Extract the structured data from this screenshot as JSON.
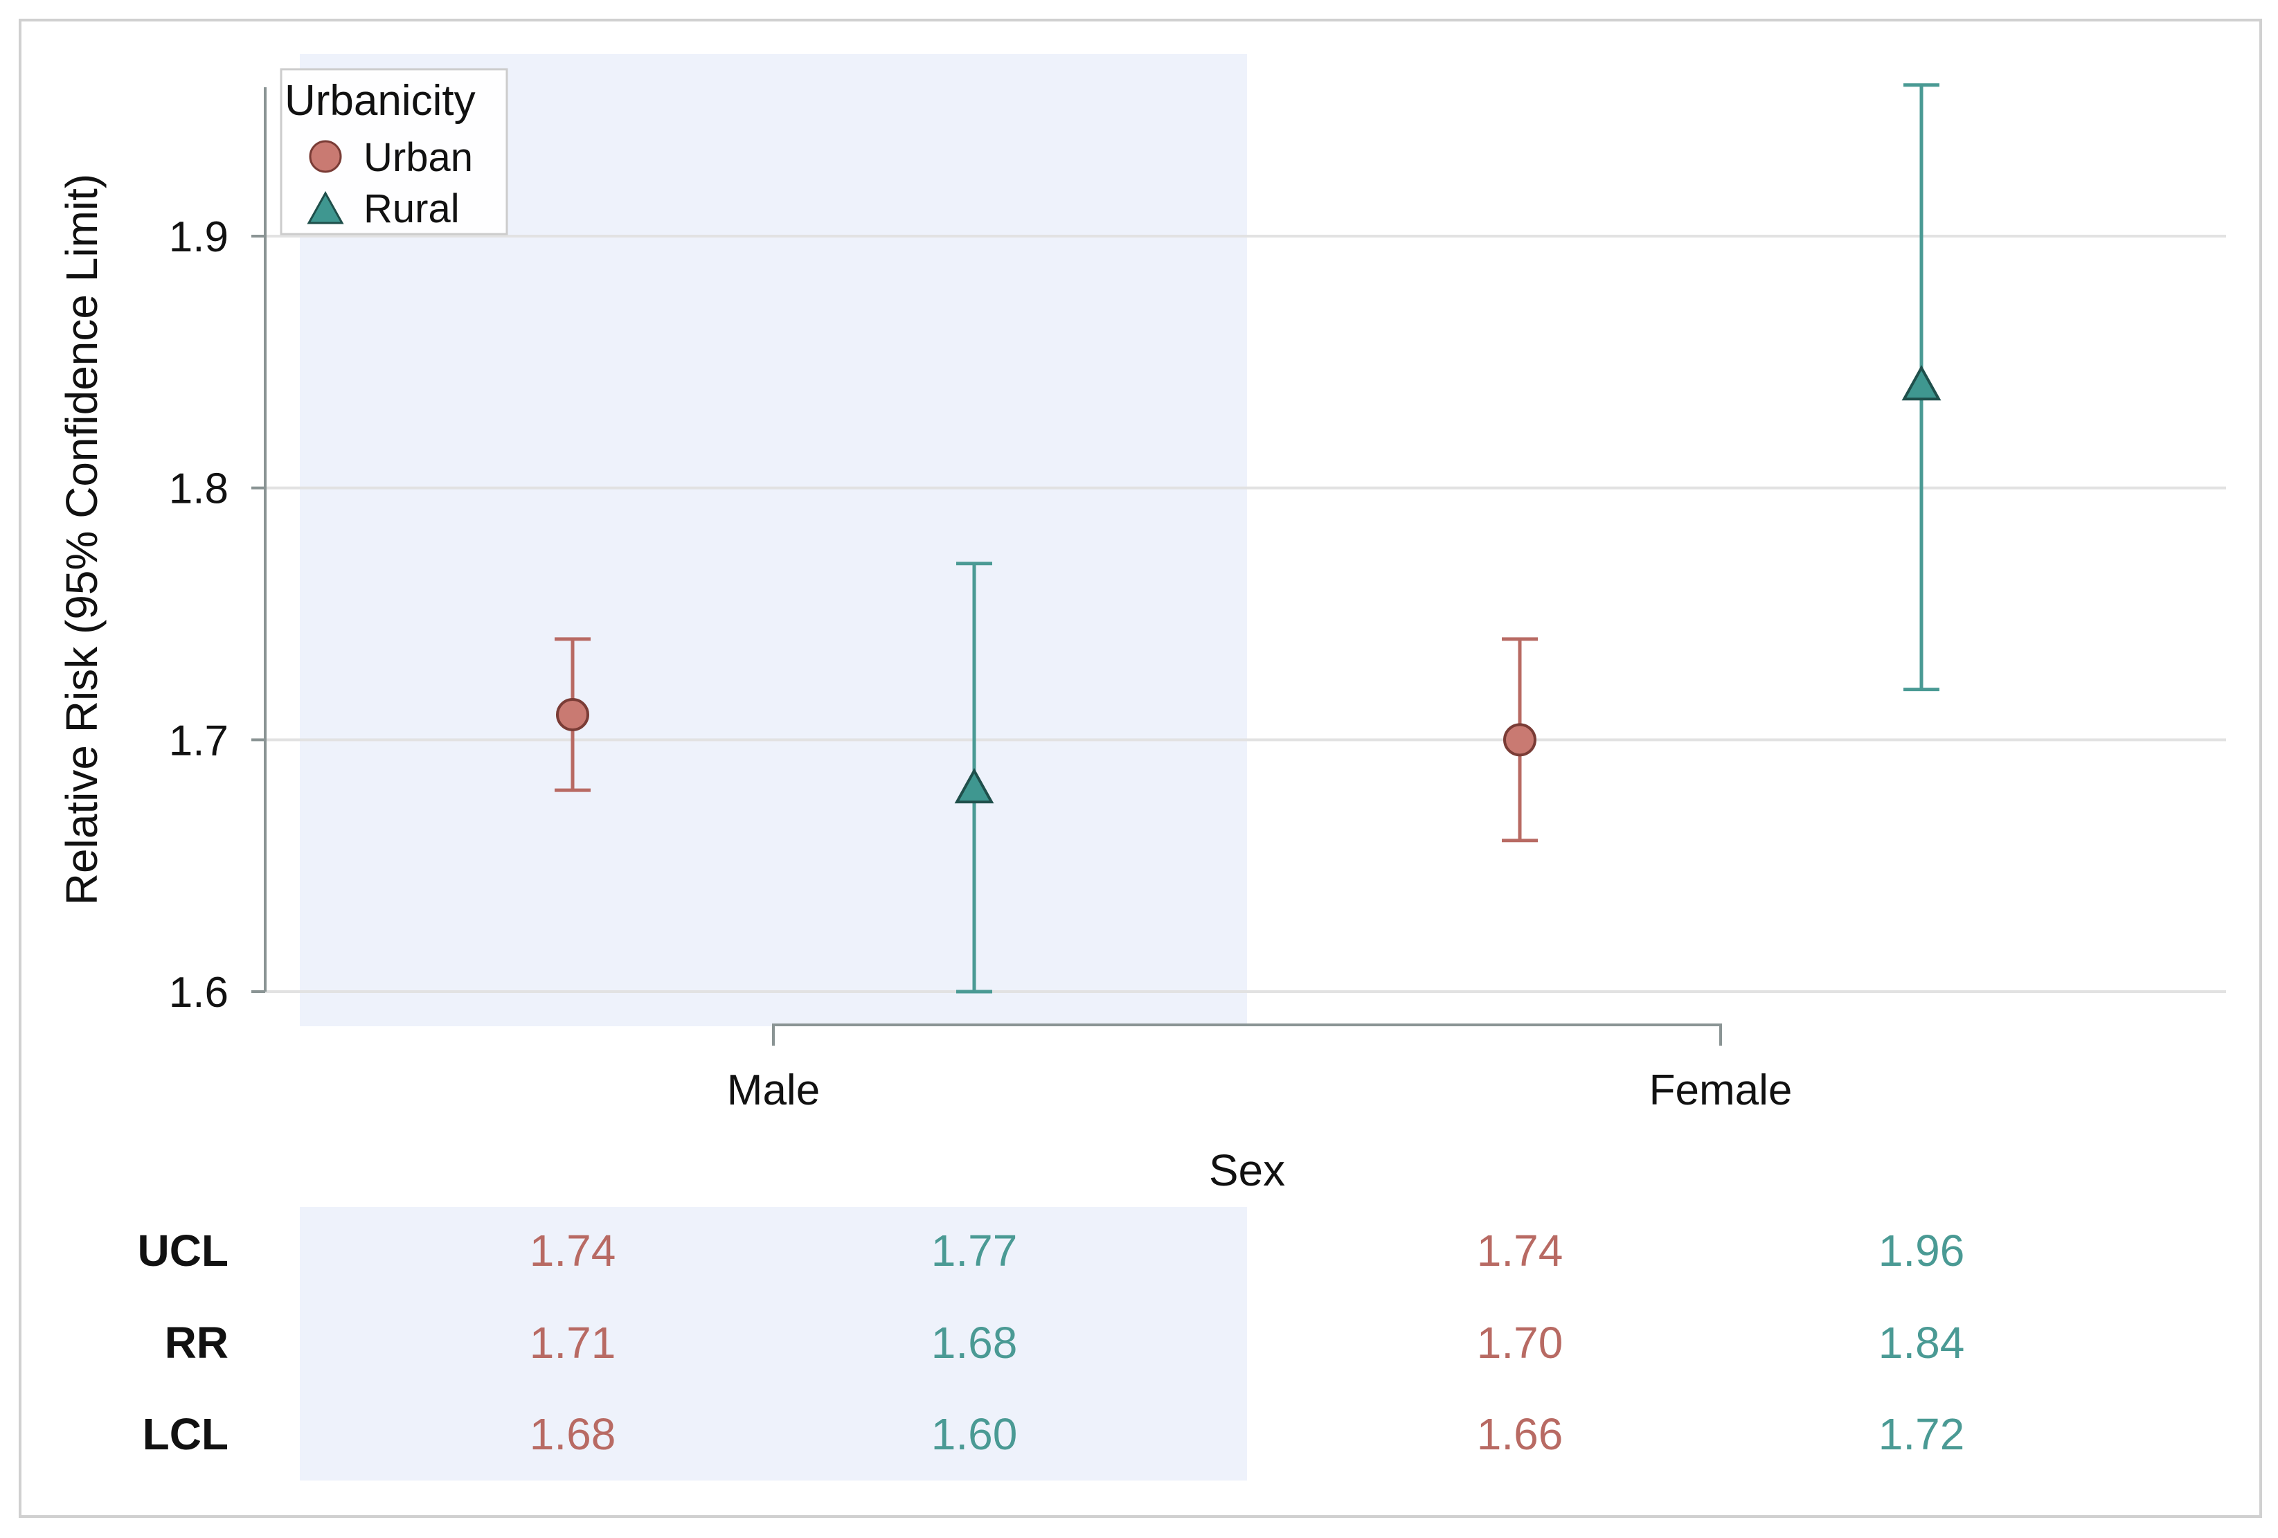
{
  "chart_data": {
    "type": "scatter",
    "subtype": "point-with-error-bars",
    "xlabel": "Sex",
    "ylabel": "Relative Risk (95% Confidence Limit)",
    "categories": [
      "Male",
      "Female"
    ],
    "ylim": [
      1.6,
      1.96
    ],
    "yticks": [
      1.6,
      1.7,
      1.8,
      1.9
    ],
    "ytick_labels": [
      "1.6",
      "1.7",
      "1.8",
      "1.9"
    ],
    "grid": true,
    "shaded_category": "Male",
    "legend": {
      "title": "Urbanicity",
      "position": "top-left",
      "entries": [
        "Urban",
        "Rural"
      ]
    },
    "series": [
      {
        "name": "Urban",
        "marker": "circle",
        "color": "#b86a63",
        "fill": "#c97a72",
        "rr": [
          1.71,
          1.7
        ],
        "ucl": [
          1.74,
          1.74
        ],
        "lcl": [
          1.68,
          1.66
        ],
        "rr_labels": [
          "1.71",
          "1.70"
        ],
        "ucl_labels": [
          "1.74",
          "1.74"
        ],
        "lcl_labels": [
          "1.68",
          "1.66"
        ]
      },
      {
        "name": "Rural",
        "marker": "triangle",
        "color": "#4a9a94",
        "fill": "#3f9790",
        "rr": [
          1.68,
          1.84
        ],
        "ucl": [
          1.77,
          1.96
        ],
        "lcl": [
          1.6,
          1.72
        ],
        "rr_labels": [
          "1.68",
          "1.84"
        ],
        "ucl_labels": [
          "1.77",
          "1.96"
        ],
        "lcl_labels": [
          "1.60",
          "1.72"
        ]
      }
    ],
    "table": {
      "row_labels": [
        "UCL",
        "RR",
        "LCL"
      ],
      "row_keys": [
        "ucl_labels",
        "rr_labels",
        "lcl_labels"
      ]
    }
  }
}
